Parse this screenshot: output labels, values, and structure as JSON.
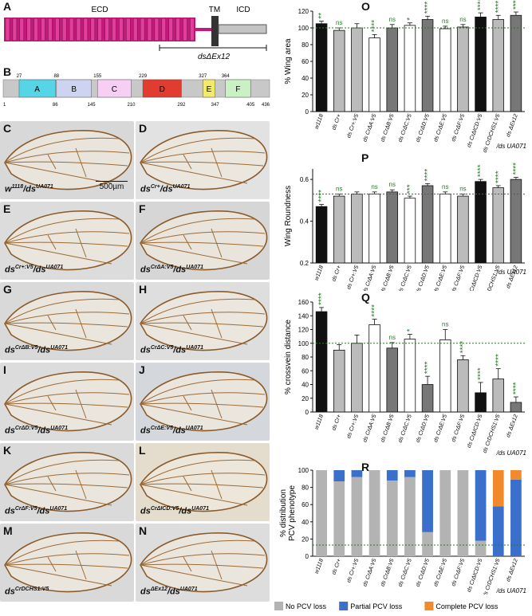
{
  "panels": {
    "A": {
      "label": "A",
      "ecd": "ECD",
      "tm": "TM",
      "icd": "ICD",
      "deletion": "dsΔEx12"
    },
    "B": {
      "label": "B",
      "domains": [
        {
          "name": "A",
          "start": 27,
          "end": 86,
          "color": "#56d5e6"
        },
        {
          "name": "B",
          "start": 88,
          "end": 145,
          "color": "#cfd3f2"
        },
        {
          "name": "C",
          "start": 155,
          "end": 210,
          "color": "#f7cff4"
        },
        {
          "name": "D",
          "start": 229,
          "end": 292,
          "color": "#e23b2f"
        },
        {
          "name": "E",
          "start": 327,
          "end": 347,
          "color": "#f3ea6a"
        },
        {
          "name": "F",
          "start": 364,
          "end": 405,
          "color": "#c9f1c3"
        }
      ],
      "length_start": 1,
      "length_end": 436
    }
  },
  "wings": [
    {
      "id": "C",
      "genotype": "w",
      "sup": "1118",
      "suffix": "/ds",
      "suffix_sup": "UA071",
      "scale": "500µm",
      "bg": "#d8d8d8"
    },
    {
      "id": "D",
      "genotype": "ds",
      "sup": "Cr+",
      "suffix": "/ds",
      "suffix_sup": "UA071",
      "bg": "#e2e2e2"
    },
    {
      "id": "E",
      "genotype": "ds",
      "sup": "Cr+:V5",
      "suffix": "/ds",
      "suffix_sup": "UA071",
      "bg": "#dcdcdc"
    },
    {
      "id": "F",
      "genotype": "ds",
      "sup": "CrΔA:V5",
      "suffix": "/ds",
      "suffix_sup": "UA071",
      "bg": "#d6d6d6"
    },
    {
      "id": "G",
      "genotype": "ds",
      "sup": "CrΔB:V5",
      "suffix": "/ds",
      "suffix_sup": "UA071",
      "bg": "#d9d9d9"
    },
    {
      "id": "H",
      "genotype": "ds",
      "sup": "CrΔC:V5",
      "suffix": "/ds",
      "suffix_sup": "UA071",
      "bg": "#dedede"
    },
    {
      "id": "I",
      "genotype": "ds",
      "sup": "CrΔD:V5",
      "suffix": "/ds",
      "suffix_sup": "UA071",
      "bg": "#dcdcdc"
    },
    {
      "id": "J",
      "genotype": "ds",
      "sup": "CrΔE:V5",
      "suffix": "/ds",
      "suffix_sup": "UA071",
      "bg": "#d4d8dc"
    },
    {
      "id": "K",
      "genotype": "ds",
      "sup": "CrΔF:V5",
      "suffix": "/ds",
      "suffix_sup": "UA071",
      "bg": "#dadada"
    },
    {
      "id": "L",
      "genotype": "ds",
      "sup": "CrΔICD:V5",
      "suffix": "/ds",
      "suffix_sup": "UA071",
      "bg": "#e4dccd"
    },
    {
      "id": "M",
      "genotype": "ds",
      "sup": "CrDCHS1:V5",
      "suffix": "",
      "suffix_sup": "",
      "bg": "#d9d9d9"
    },
    {
      "id": "N",
      "genotype": "ds",
      "sup": "ΔEx12",
      "suffix": "/ds",
      "suffix_sup": "UA071",
      "bg": "#dddddd"
    }
  ],
  "genotype_axis": {
    "labels": [
      "w1118",
      "ds Cr+",
      "ds Cr+:V5",
      "ds CrΔA:V5",
      "ds CrΔB:V5",
      "ds CrΔC:V5",
      "ds CrΔD:V5",
      "ds CrΔE:V5",
      "ds CrΔF:V5",
      "ds CrΔICD:V5",
      "ds CrDCHS1:V5",
      "ds ΔEx12"
    ],
    "suffix": "/ds UA071"
  },
  "chart_data": [
    {
      "id": "O",
      "type": "bar",
      "ylabel": "% Wing area",
      "ylim": [
        0,
        120
      ],
      "yticks": [
        0,
        20,
        40,
        60,
        80,
        100,
        120
      ],
      "reference": 100,
      "values": [
        105,
        97,
        100,
        88,
        100,
        103,
        110,
        99,
        101,
        113,
        110,
        115
      ],
      "errors": [
        3,
        3,
        5,
        4,
        4,
        3,
        4,
        3,
        3,
        5,
        5,
        4
      ],
      "sig": [
        "**",
        "ns",
        "",
        "****",
        "ns",
        "*",
        "****",
        "ns",
        "ns",
        "****",
        "****",
        "****"
      ],
      "fills": [
        "#111111",
        "#bbbbbb",
        "#bbbbbb",
        "#ffffff",
        "#777777",
        "#ffffff",
        "#777777",
        "#ffffff",
        "#bbbbbb",
        "#111111",
        "#bbbbbb",
        "#777777"
      ]
    },
    {
      "id": "P",
      "type": "bar",
      "ylabel": "Wing Roundness",
      "ylim": [
        0.2,
        0.65
      ],
      "yticks": [
        0.2,
        0.4,
        0.6
      ],
      "reference": 0.53,
      "values": [
        0.47,
        0.52,
        0.53,
        0.53,
        0.54,
        0.51,
        0.57,
        0.53,
        0.52,
        0.59,
        0.56,
        0.6
      ],
      "errors": [
        0.01,
        0.01,
        0.01,
        0.01,
        0.01,
        0.01,
        0.01,
        0.01,
        0.01,
        0.01,
        0.01,
        0.01
      ],
      "sig": [
        "****",
        "ns",
        "",
        "ns",
        "ns",
        "***",
        "****",
        "ns",
        "ns",
        "****",
        "****",
        "****"
      ],
      "fills": [
        "#111111",
        "#bbbbbb",
        "#bbbbbb",
        "#ffffff",
        "#777777",
        "#ffffff",
        "#777777",
        "#ffffff",
        "#bbbbbb",
        "#111111",
        "#bbbbbb",
        "#777777"
      ]
    },
    {
      "id": "Q",
      "type": "bar",
      "ylabel": "% crossvein distance",
      "ylim": [
        0,
        160
      ],
      "yticks": [
        0,
        20,
        40,
        60,
        80,
        100,
        120,
        140,
        160
      ],
      "reference": 100,
      "values": [
        146,
        90,
        100,
        127,
        93,
        106,
        40,
        105,
        76,
        28,
        48,
        14
      ],
      "errors": [
        6,
        8,
        12,
        8,
        8,
        7,
        12,
        15,
        6,
        15,
        15,
        8
      ],
      "sig": [
        "****",
        "",
        "",
        "****",
        "ns",
        "*",
        "****",
        "ns",
        "****",
        "****",
        "****",
        "****"
      ],
      "fills": [
        "#111111",
        "#bbbbbb",
        "#bbbbbb",
        "#ffffff",
        "#777777",
        "#ffffff",
        "#777777",
        "#ffffff",
        "#bbbbbb",
        "#111111",
        "#bbbbbb",
        "#777777"
      ]
    },
    {
      "id": "R",
      "type": "bar",
      "ylabel": "% distribution PCV phenotype",
      "ylim": [
        0,
        100
      ],
      "yticks": [
        0,
        20,
        40,
        60,
        80,
        100
      ],
      "series": [
        {
          "name": "No PCV loss",
          "color": "#b3b3b3",
          "values": [
            100,
            87,
            92,
            100,
            88,
            92,
            28,
            100,
            100,
            18,
            0,
            0
          ]
        },
        {
          "name": "Partial PCV loss",
          "color": "#3a6fcb",
          "values": [
            0,
            13,
            8,
            0,
            12,
            8,
            72,
            0,
            0,
            82,
            58,
            89
          ]
        },
        {
          "name": "Complete PCV loss",
          "color": "#f08a2c",
          "values": [
            0,
            0,
            0,
            0,
            0,
            0,
            0,
            0,
            0,
            0,
            42,
            11
          ]
        }
      ]
    }
  ],
  "legend": [
    {
      "name": "No PCV loss",
      "color": "#b3b3b3"
    },
    {
      "name": "Partial PCV loss",
      "color": "#3a6fcb"
    },
    {
      "name": "Complete PCV loss",
      "color": "#f08a2c"
    }
  ]
}
